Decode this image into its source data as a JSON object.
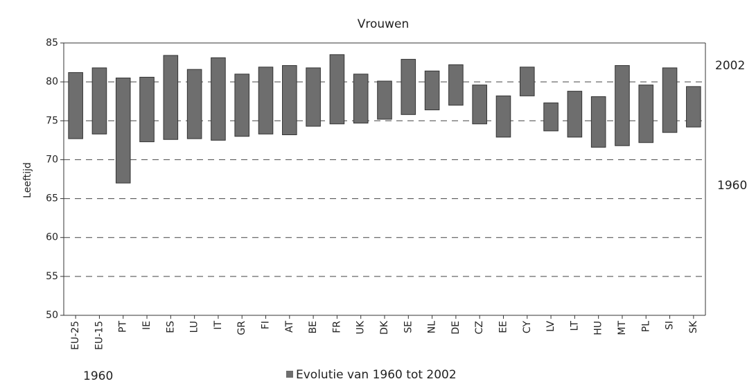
{
  "chart_data": {
    "type": "floating_bar",
    "title": "Vrouwen",
    "y_label": "Leeftijd",
    "categories": [
      "EU-25",
      "EU-15",
      "PT",
      "IE",
      "ES",
      "LU",
      "IT",
      "GR",
      "FI",
      "AT",
      "BE",
      "FR",
      "UK",
      "DK",
      "SE",
      "NL",
      "DE",
      "CZ",
      "EE",
      "CY",
      "LV",
      "LT",
      "HU",
      "MT",
      "PL",
      "SI",
      "SK"
    ],
    "series": [
      {
        "name": "Evolutie van 1960 tot 2002",
        "color": "#6e6e6e",
        "low": [
          72.7,
          73.3,
          67.0,
          72.3,
          72.6,
          72.7,
          72.5,
          73.0,
          73.3,
          73.2,
          74.3,
          74.6,
          74.7,
          75.2,
          75.8,
          76.4,
          77.0,
          74.6,
          72.9,
          78.2,
          73.7,
          72.9,
          71.6,
          71.8,
          72.2,
          73.5,
          74.2
        ],
        "high": [
          81.2,
          81.8,
          80.5,
          80.6,
          83.4,
          81.6,
          83.1,
          81.0,
          81.9,
          82.1,
          81.8,
          83.5,
          81.0,
          80.1,
          82.9,
          81.4,
          82.2,
          79.6,
          78.2,
          81.9,
          77.3,
          78.8,
          78.1,
          82.1,
          79.6,
          81.8,
          79.4
        ]
      }
    ],
    "annotations": [
      "2002",
      "1960",
      "1960"
    ],
    "ylim": [
      50,
      85
    ],
    "yticks": [
      50,
      55,
      60,
      65,
      70,
      75,
      80,
      85
    ],
    "grid": true
  }
}
